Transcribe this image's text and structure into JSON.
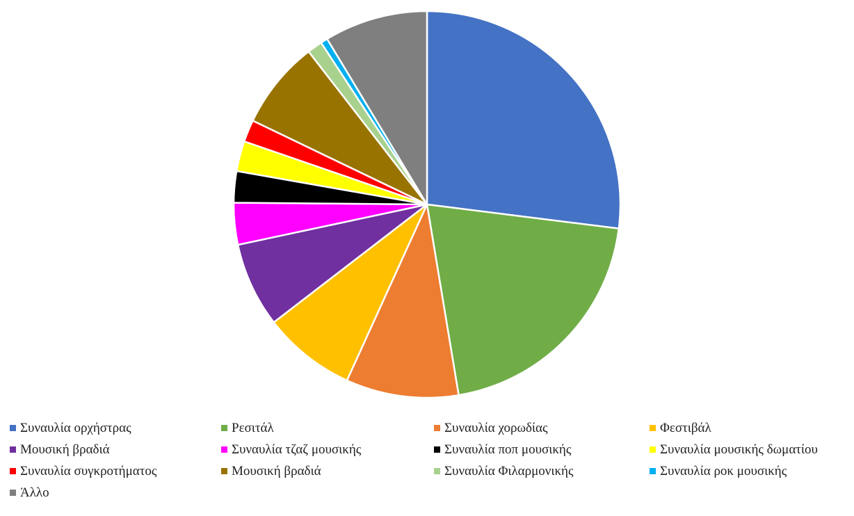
{
  "chart_data": {
    "type": "pie",
    "title": "",
    "start_angle_deg": 0,
    "direction": "clockwise",
    "legend_position": "bottom",
    "slices": [
      {
        "label": "Συναυλία ορχήστρας",
        "value": 27.8,
        "color": "#4472C4"
      },
      {
        "label": "Ρεσιτάλ",
        "value": 21.0,
        "color": "#70AD47"
      },
      {
        "label": "Συναυλία χορωδίας",
        "value": 9.7,
        "color": "#ED7D31"
      },
      {
        "label": "Φεστιβάλ",
        "value": 8.0,
        "color": "#FFC000"
      },
      {
        "label": "Μουσική βραδιά",
        "value": 7.3,
        "color": "#7030A0"
      },
      {
        "label": "Συναυλία τζαζ μουσικής",
        "value": 3.6,
        "color": "#FF00FF"
      },
      {
        "label": "Συναυλία ποπ μουσικής",
        "value": 2.7,
        "color": "#000000"
      },
      {
        "label": "Συναυλία μουσικής δωματίου",
        "value": 2.6,
        "color": "#FFFF00"
      },
      {
        "label": "Συναυλία συγκροτήματος",
        "value": 1.9,
        "color": "#FF0000"
      },
      {
        "label": "Μουσική βραδιά",
        "value": 7.6,
        "color": "#997300"
      },
      {
        "label": "Συναυλία Φιλαρμονικής",
        "value": 1.3,
        "color": "#A9D18E"
      },
      {
        "label": "Συναυλία ροκ μουσικής",
        "value": 0.6,
        "color": "#00B0F0"
      },
      {
        "label": "Άλλο",
        "value": 8.9,
        "color": "#7F7F7F"
      }
    ]
  }
}
